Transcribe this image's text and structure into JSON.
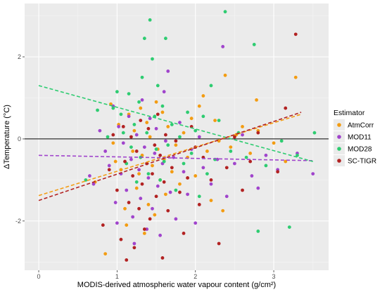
{
  "chart_data": {
    "type": "scatter",
    "xlabel": "MODIS-derived atmospheric water vapour content (g/cm²)",
    "ylabel": "ΔTemperature (°C)",
    "xlim": [
      -0.18,
      3.7
    ],
    "ylim": [
      -3.2,
      3.3
    ],
    "x_ticks": [
      0,
      1,
      2,
      3
    ],
    "y_ticks": [
      -2,
      0,
      2
    ],
    "grid": true,
    "zero_line": 0,
    "legend_title": "Estimator",
    "legend_position": "right",
    "series": [
      {
        "name": "AtmCorr",
        "color": "#f39c12",
        "trend": {
          "x0": 0,
          "y0": -1.38,
          "x1": 3.35,
          "y1": 0.6
        },
        "points": [
          [
            0.72,
            -1.05
          ],
          [
            0.85,
            -2.8
          ],
          [
            0.92,
            0.85
          ],
          [
            0.95,
            -0.1
          ],
          [
            0.98,
            -0.55
          ],
          [
            1.02,
            0.35
          ],
          [
            1.05,
            -0.75
          ],
          [
            1.1,
            -1.7
          ],
          [
            1.12,
            -2.1
          ],
          [
            1.15,
            0.6
          ],
          [
            1.2,
            -0.3
          ],
          [
            1.22,
            0.2
          ],
          [
            1.25,
            -1.2
          ],
          [
            1.28,
            -0.85
          ],
          [
            1.3,
            0.75
          ],
          [
            1.32,
            -0.4
          ],
          [
            1.35,
            -2.3
          ],
          [
            1.38,
            0.4
          ],
          [
            1.4,
            -1.6
          ],
          [
            1.42,
            0.05
          ],
          [
            1.45,
            -0.65
          ],
          [
            1.48,
            -1.85
          ],
          [
            1.5,
            0.9
          ],
          [
            1.52,
            -0.25
          ],
          [
            1.55,
            -1.0
          ],
          [
            1.58,
            0.65
          ],
          [
            1.6,
            -0.5
          ],
          [
            1.62,
            -1.35
          ],
          [
            1.65,
            0.3
          ],
          [
            1.7,
            -0.8
          ],
          [
            1.75,
            -0.15
          ],
          [
            1.8,
            -1.1
          ],
          [
            1.85,
            0.15
          ],
          [
            1.9,
            -0.45
          ],
          [
            1.95,
            0.5
          ],
          [
            2.0,
            -0.9
          ],
          [
            2.05,
            0.8
          ],
          [
            2.1,
            1.05
          ],
          [
            2.15,
            -0.3
          ],
          [
            2.2,
            -1.5
          ],
          [
            2.25,
            0.45
          ],
          [
            2.3,
            -0.05
          ],
          [
            2.35,
            -1.75
          ],
          [
            2.38,
            1.55
          ],
          [
            2.45,
            -0.2
          ],
          [
            2.52,
            0.1
          ],
          [
            2.6,
            0.3
          ],
          [
            2.7,
            -0.35
          ],
          [
            2.78,
            0.95
          ],
          [
            2.8,
            0.2
          ],
          [
            3.0,
            -0.1
          ],
          [
            3.15,
            -0.55
          ],
          [
            3.28,
            1.5
          ]
        ]
      },
      {
        "name": "MOD11",
        "color": "#a044cc",
        "trend": {
          "x0": 0,
          "y0": -0.4,
          "x1": 3.5,
          "y1": -0.53
        },
        "points": [
          [
            0.65,
            -0.9
          ],
          [
            0.7,
            -1.1
          ],
          [
            0.78,
            0.2
          ],
          [
            0.85,
            -0.3
          ],
          [
            0.9,
            -0.65
          ],
          [
            0.95,
            0.8
          ],
          [
            0.98,
            -1.55
          ],
          [
            1.0,
            -2.05
          ],
          [
            1.02,
            0.3
          ],
          [
            1.05,
            -0.85
          ],
          [
            1.08,
            -0.1
          ],
          [
            1.12,
            -1.25
          ],
          [
            1.15,
            0.55
          ],
          [
            1.18,
            -0.5
          ],
          [
            1.2,
            -1.9
          ],
          [
            1.22,
            -2.55
          ],
          [
            1.25,
            0.1
          ],
          [
            1.28,
            -0.75
          ],
          [
            1.3,
            -1.45
          ],
          [
            1.32,
            0.95
          ],
          [
            1.35,
            -0.2
          ],
          [
            1.38,
            -2.2
          ],
          [
            1.4,
            -0.95
          ],
          [
            1.42,
            0.5
          ],
          [
            1.45,
            -1.7
          ],
          [
            1.48,
            -0.35
          ],
          [
            1.5,
            0.25
          ],
          [
            1.52,
            -1.15
          ],
          [
            1.55,
            -2.35
          ],
          [
            1.58,
            -0.6
          ],
          [
            1.6,
            1.15
          ],
          [
            1.62,
            -0.05
          ],
          [
            1.65,
            1.65
          ],
          [
            1.68,
            -1.3
          ],
          [
            1.72,
            -0.45
          ],
          [
            1.75,
            -1.95
          ],
          [
            1.8,
            0.4
          ],
          [
            1.85,
            -0.8
          ],
          [
            1.9,
            -1.35
          ],
          [
            1.95,
            -0.25
          ],
          [
            2.0,
            -2.05
          ],
          [
            2.05,
            0.05
          ],
          [
            2.1,
            -0.7
          ],
          [
            2.2,
            -1.1
          ],
          [
            2.28,
            -0.5
          ],
          [
            2.35,
            2.25
          ],
          [
            2.4,
            -1.4
          ],
          [
            2.5,
            -0.6
          ],
          [
            2.6,
            0.1
          ],
          [
            2.72,
            -0.9
          ],
          [
            2.8,
            -1.2
          ],
          [
            2.9,
            -0.4
          ],
          [
            3.05,
            -0.75
          ],
          [
            3.3,
            -0.35
          ],
          [
            3.5,
            -0.85
          ]
        ]
      },
      {
        "name": "MOD28",
        "color": "#2ecc71",
        "trend": {
          "x0": 0,
          "y0": 1.3,
          "x1": 3.5,
          "y1": -0.55
        },
        "points": [
          [
            0.6,
            -1.0
          ],
          [
            0.75,
            0.7
          ],
          [
            0.88,
            0.05
          ],
          [
            0.95,
            0.75
          ],
          [
            1.0,
            1.15
          ],
          [
            1.05,
            0.6
          ],
          [
            1.08,
            0.15
          ],
          [
            1.12,
            -0.6
          ],
          [
            1.15,
            1.1
          ],
          [
            1.18,
            -0.2
          ],
          [
            1.22,
            0.35
          ],
          [
            1.25,
            -1.05
          ],
          [
            1.28,
            0.9
          ],
          [
            1.3,
            -0.45
          ],
          [
            1.32,
            1.5
          ],
          [
            1.35,
            2.45
          ],
          [
            1.38,
            0.15
          ],
          [
            1.4,
            -0.85
          ],
          [
            1.42,
            2.9
          ],
          [
            1.45,
            1.95
          ],
          [
            1.48,
            0.55
          ],
          [
            1.5,
            -0.25
          ],
          [
            1.52,
            1.3
          ],
          [
            1.55,
            -1.0
          ],
          [
            1.58,
            0.8
          ],
          [
            1.6,
            -0.55
          ],
          [
            1.62,
            2.45
          ],
          [
            1.65,
            -0.15
          ],
          [
            1.7,
            0.35
          ],
          [
            1.75,
            -1.25
          ],
          [
            1.8,
            0.05
          ],
          [
            1.85,
            -0.6
          ],
          [
            1.9,
            0.65
          ],
          [
            1.95,
            -0.35
          ],
          [
            2.0,
            0.2
          ],
          [
            2.05,
            -1.4
          ],
          [
            2.1,
            0.55
          ],
          [
            2.15,
            -0.85
          ],
          [
            2.2,
            1.3
          ],
          [
            2.25,
            -0.5
          ],
          [
            2.3,
            0.45
          ],
          [
            2.38,
            3.1
          ],
          [
            2.45,
            -0.3
          ],
          [
            2.55,
            0.15
          ],
          [
            2.65,
            -0.45
          ],
          [
            2.75,
            2.3
          ],
          [
            2.8,
            -2.25
          ],
          [
            2.9,
            -0.65
          ],
          [
            3.1,
            -0.05
          ],
          [
            3.2,
            -2.15
          ],
          [
            3.3,
            -0.4
          ],
          [
            3.52,
            0.15
          ]
        ]
      },
      {
        "name": "SC-TIGR",
        "color": "#b22222",
        "trend": {
          "x0": 0,
          "y0": -1.5,
          "x1": 3.35,
          "y1": 0.65
        },
        "points": [
          [
            0.82,
            -2.1
          ],
          [
            0.9,
            -0.75
          ],
          [
            0.95,
            0.1
          ],
          [
            1.0,
            -1.25
          ],
          [
            1.05,
            -2.45
          ],
          [
            1.08,
            0.3
          ],
          [
            1.1,
            -0.55
          ],
          [
            1.12,
            -2.95
          ],
          [
            1.15,
            -1.55
          ],
          [
            1.18,
            0.05
          ],
          [
            1.2,
            -0.9
          ],
          [
            1.22,
            -2.65
          ],
          [
            1.25,
            -0.3
          ],
          [
            1.28,
            -1.7
          ],
          [
            1.3,
            0.45
          ],
          [
            1.32,
            -1.1
          ],
          [
            1.35,
            -2.2
          ],
          [
            1.38,
            -0.6
          ],
          [
            1.4,
            0.25
          ],
          [
            1.42,
            -1.95
          ],
          [
            1.45,
            -0.85
          ],
          [
            1.48,
            -0.15
          ],
          [
            1.5,
            -1.4
          ],
          [
            1.52,
            0.6
          ],
          [
            1.55,
            -0.4
          ],
          [
            1.58,
            -2.9
          ],
          [
            1.6,
            -1.05
          ],
          [
            1.62,
            0.1
          ],
          [
            1.65,
            -1.75
          ],
          [
            1.7,
            -0.7
          ],
          [
            1.75,
            -0.05
          ],
          [
            1.8,
            -1.3
          ],
          [
            1.85,
            -2.3
          ],
          [
            1.9,
            -0.95
          ],
          [
            1.95,
            0.3
          ],
          [
            2.0,
            -0.2
          ],
          [
            2.05,
            -1.6
          ],
          [
            2.1,
            -0.45
          ],
          [
            2.2,
            -1.0
          ],
          [
            2.3,
            -2.55
          ],
          [
            2.4,
            -0.7
          ],
          [
            2.5,
            0.05
          ],
          [
            2.6,
            -1.25
          ],
          [
            2.7,
            -0.55
          ],
          [
            2.8,
            0.15
          ],
          [
            3.05,
            -0.8
          ],
          [
            3.15,
            0.75
          ],
          [
            3.28,
            2.55
          ]
        ]
      }
    ]
  }
}
